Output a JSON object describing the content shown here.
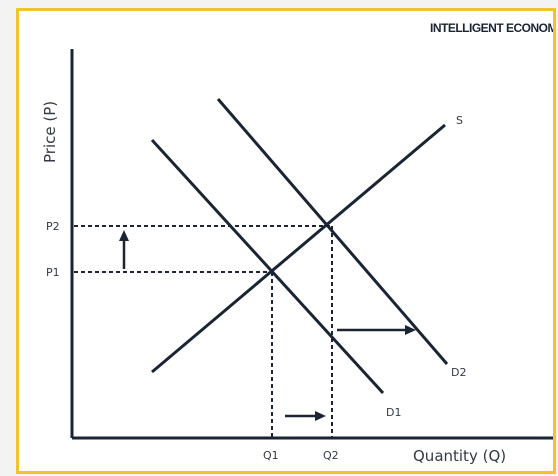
{
  "brand": "INTELLIGENT ECONOMIS",
  "axes": {
    "y_label": "Price (P)",
    "x_label": "Quantity (Q)"
  },
  "labels": {
    "supply": "S",
    "demand_1": "D1",
    "demand_2": "D2",
    "price_1": "P1",
    "price_2": "P2",
    "quantity_1": "Q1",
    "quantity_2": "Q2"
  },
  "colors": {
    "frame_border": "#f2c230",
    "line": "#1a2433",
    "background": "#ffffff"
  }
}
